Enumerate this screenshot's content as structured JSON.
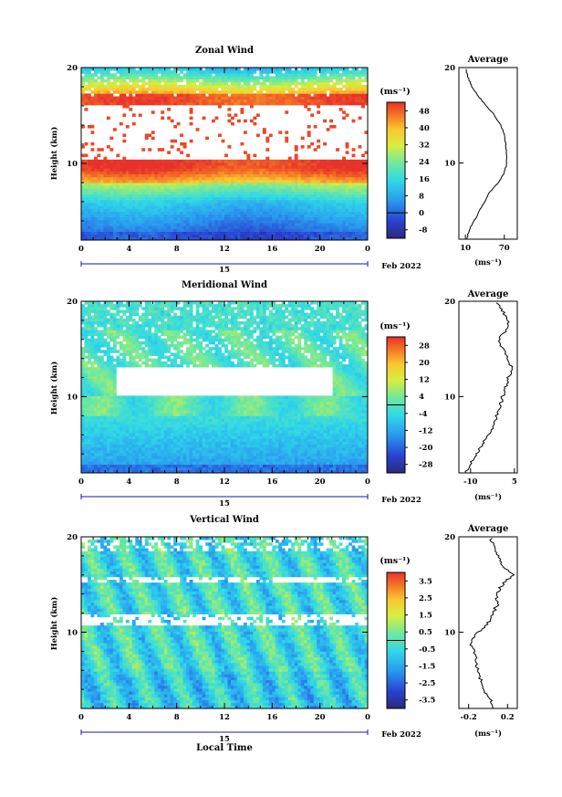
{
  "chart_data": [
    {
      "type": "heatmap",
      "title": "Zonal Wind",
      "ylabel": "Height (km)",
      "xlabel": "",
      "ylim": [
        2,
        20
      ],
      "xlim": [
        0,
        24
      ],
      "x_ticks": [
        "0",
        "4",
        "8",
        "12",
        "16",
        "20",
        "0"
      ],
      "y_ticks": [
        "20",
        "10"
      ],
      "day_label": "15",
      "date_label": "Feb 2022",
      "colorbar": {
        "unit": "(ms⁻¹)",
        "ticks": [
          "48",
          "40",
          "32",
          "24",
          "16",
          "8",
          "0",
          "-8"
        ],
        "range": [
          -12,
          52
        ]
      },
      "profile": {
        "title": "Average",
        "xlabel": "(ms⁻¹)",
        "x_ticks": [
          "10",
          "70"
        ],
        "xlim": [
          0,
          90
        ],
        "y_ticks": [
          "20",
          "10"
        ],
        "heights": [
          2,
          3,
          4,
          5,
          6,
          7,
          8,
          9,
          10,
          11,
          12,
          13,
          14,
          15,
          16,
          17,
          18,
          19,
          20
        ],
        "values": [
          12,
          16,
          24,
          32,
          40,
          48,
          62,
          70,
          74,
          73,
          72,
          70,
          64,
          55,
          42,
          30,
          20,
          14,
          10
        ]
      }
    },
    {
      "type": "heatmap",
      "title": "Meridional Wind",
      "ylabel": "Height (km)",
      "xlabel": "",
      "ylim": [
        2,
        20
      ],
      "xlim": [
        0,
        24
      ],
      "x_ticks": [
        "0",
        "4",
        "8",
        "12",
        "16",
        "20",
        "0"
      ],
      "y_ticks": [
        "20",
        "10"
      ],
      "day_label": "15",
      "date_label": "Feb 2022",
      "colorbar": {
        "unit": "(ms⁻¹)",
        "ticks": [
          "28",
          "20",
          "12",
          "4",
          "-4",
          "-12",
          "-20",
          "-28"
        ],
        "range": [
          -32,
          32
        ]
      },
      "profile": {
        "title": "Average",
        "xlabel": "(ms⁻¹)",
        "x_ticks": [
          "-10",
          "5"
        ],
        "xlim": [
          -14,
          6
        ],
        "y_ticks": [
          "20",
          "10"
        ],
        "heights": [
          2,
          3,
          4,
          5,
          6,
          7,
          8,
          9,
          10,
          11,
          12,
          13,
          14,
          15,
          16,
          17,
          18,
          19,
          20
        ],
        "values": [
          -12,
          -10,
          -8,
          -6,
          -4,
          -2,
          -1,
          0,
          1,
          2,
          3,
          4,
          3,
          1,
          0,
          2,
          3,
          1,
          -1
        ]
      }
    },
    {
      "type": "heatmap",
      "title": "Vertical Wind",
      "ylabel": "Height (km)",
      "xlabel": "Local Time",
      "ylim": [
        2,
        20
      ],
      "xlim": [
        0,
        24
      ],
      "x_ticks": [
        "0",
        "4",
        "8",
        "12",
        "16",
        "20",
        "0"
      ],
      "y_ticks": [
        "20",
        "10"
      ],
      "day_label": "15",
      "date_label": "Feb 2022",
      "colorbar": {
        "unit": "(ms⁻¹)",
        "ticks": [
          "3.5",
          "2.5",
          "1.5",
          "0.5",
          "-0.5",
          "-1.5",
          "-2.5",
          "-3.5"
        ],
        "range": [
          -4,
          4
        ]
      },
      "profile": {
        "title": "Average",
        "xlabel": "(ms⁻¹)",
        "x_ticks": [
          "-0.2",
          "0.2"
        ],
        "xlim": [
          -0.3,
          0.3
        ],
        "y_ticks": [
          "20",
          "10"
        ],
        "heights": [
          2,
          3,
          4,
          5,
          6,
          7,
          8,
          9,
          10,
          11,
          12,
          13,
          14,
          15,
          16,
          17,
          18,
          19,
          20
        ],
        "values": [
          0.05,
          0.02,
          -0.05,
          -0.08,
          -0.1,
          -0.12,
          -0.15,
          -0.18,
          -0.1,
          0.0,
          0.05,
          0.1,
          0.08,
          0.15,
          0.25,
          0.15,
          0.1,
          0.05,
          0.02
        ]
      }
    }
  ]
}
